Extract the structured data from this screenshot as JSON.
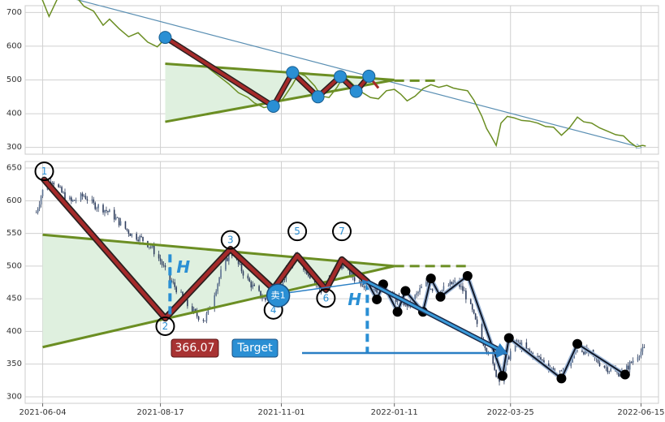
{
  "colors": {
    "price_line": "#6b8e23",
    "pattern_zigzag": "#a52a2a",
    "pattern_fill": "#dff0df",
    "trendline": "#6b8e23",
    "marker_blue": "#2a8fd4",
    "arrow_blue": "#2a7fc4",
    "candle": "#2f3e5e",
    "grid": "#d0d0d0",
    "price_badge_bg": "#a83232",
    "target_badge_bg": "#2a8fd4"
  },
  "chart_data": [
    {
      "type": "line",
      "panel": "overview",
      "ylim": [
        280,
        720
      ],
      "yticks": [
        "700",
        "600",
        "500",
        "400",
        "300"
      ],
      "x_start": "2021-06-01",
      "x_end": "2022-06-20",
      "series": [
        {
          "values": [
            [
              "2021-06-01",
              765
            ],
            [
              "2021-06-04",
              735
            ],
            [
              "2021-06-08",
              688
            ],
            [
              "2021-06-14",
              748
            ],
            [
              "2021-06-18",
              756
            ],
            [
              "2021-06-24",
              752
            ],
            [
              "2021-06-30",
              718
            ],
            [
              "2021-07-06",
              704
            ],
            [
              "2021-07-12",
              662
            ],
            [
              "2021-07-16",
              680
            ],
            [
              "2021-07-22",
              652
            ],
            [
              "2021-07-28",
              628
            ],
            [
              "2021-08-03",
              640
            ],
            [
              "2021-08-09",
              612
            ],
            [
              "2021-08-15",
              598
            ],
            [
              "2021-08-20",
              622
            ],
            [
              "2021-08-26",
              612
            ],
            [
              "2021-09-01",
              596
            ],
            [
              "2021-09-07",
              578
            ],
            [
              "2021-09-13",
              548
            ],
            [
              "2021-09-17",
              532
            ],
            [
              "2021-09-23",
              510
            ],
            [
              "2021-09-29",
              488
            ],
            [
              "2021-10-05",
              462
            ],
            [
              "2021-10-11",
              448
            ],
            [
              "2021-10-15",
              432
            ],
            [
              "2021-10-21",
              418
            ],
            [
              "2021-10-27",
              424
            ],
            [
              "2021-11-02",
              444
            ],
            [
              "2021-11-08",
              486
            ],
            [
              "2021-11-12",
              520
            ],
            [
              "2021-11-16",
              512
            ],
            [
              "2021-11-22",
              482
            ],
            [
              "2021-11-26",
              452
            ],
            [
              "2021-12-01",
              448
            ],
            [
              "2021-12-06",
              478
            ],
            [
              "2021-12-10",
              512
            ],
            [
              "2021-12-14",
              496
            ],
            [
              "2021-12-20",
              468
            ],
            [
              "2021-12-27",
              448
            ],
            [
              "2022-01-01",
              444
            ],
            [
              "2022-01-06",
              468
            ],
            [
              "2022-01-11",
              472
            ],
            [
              "2022-01-15",
              458
            ],
            [
              "2022-01-19",
              438
            ],
            [
              "2022-01-24",
              452
            ],
            [
              "2022-01-29",
              474
            ],
            [
              "2022-02-03",
              486
            ],
            [
              "2022-02-08",
              478
            ],
            [
              "2022-02-13",
              484
            ],
            [
              "2022-02-17",
              476
            ],
            [
              "2022-02-21",
              472
            ],
            [
              "2022-02-26",
              468
            ],
            [
              "2022-03-02",
              440
            ],
            [
              "2022-03-07",
              392
            ],
            [
              "2022-03-10",
              356
            ],
            [
              "2022-03-13",
              332
            ],
            [
              "2022-03-16",
              306
            ],
            [
              "2022-03-19",
              372
            ],
            [
              "2022-03-23",
              392
            ],
            [
              "2022-03-27",
              388
            ],
            [
              "2022-04-01",
              380
            ],
            [
              "2022-04-06",
              378
            ],
            [
              "2022-04-11",
              372
            ],
            [
              "2022-04-16",
              362
            ],
            [
              "2022-04-21",
              360
            ],
            [
              "2022-04-26",
              336
            ],
            [
              "2022-05-01",
              358
            ],
            [
              "2022-05-06",
              390
            ],
            [
              "2022-05-10",
              376
            ],
            [
              "2022-05-15",
              372
            ],
            [
              "2022-05-20",
              358
            ],
            [
              "2022-05-25",
              348
            ],
            [
              "2022-05-30",
              338
            ],
            [
              "2022-06-04",
              334
            ],
            [
              "2022-06-08",
              316
            ],
            [
              "2022-06-12",
              302
            ],
            [
              "2022-06-16",
              306
            ],
            [
              "2022-06-18",
              304
            ]
          ]
        }
      ],
      "zigzag": [
        [
          "2021-08-20",
          626
        ],
        [
          "2021-10-27",
          422
        ],
        [
          "2021-11-08",
          522
        ],
        [
          "2021-11-24",
          450
        ],
        [
          "2021-12-08",
          510
        ],
        [
          "2021-12-18",
          466
        ],
        [
          "2021-12-26",
          511
        ]
      ],
      "zigzag_tail": [
        [
          "2021-12-26",
          511
        ],
        [
          "2022-01-01",
          476
        ]
      ],
      "upper_line": [
        [
          "2021-08-20",
          548
        ],
        [
          "2022-01-11",
          500
        ]
      ],
      "lower_line": [
        [
          "2021-08-20",
          376
        ],
        [
          "2022-01-11",
          500
        ]
      ],
      "upper_line_extension": [
        [
          "2022-01-11",
          498
        ],
        [
          "2022-02-07",
          498
        ]
      ],
      "fill_polygon": [
        [
          "2021-08-20",
          548
        ],
        [
          "2022-01-11",
          500
        ],
        [
          "2021-08-20",
          376
        ]
      ],
      "arrow_outline": [
        [
          "2021-06-01",
          768
        ],
        [
          "2022-06-15",
          300
        ]
      ]
    },
    {
      "type": "candlestick",
      "panel": "detail",
      "ylim": [
        290,
        660
      ],
      "yticks": [
        "650",
        "600",
        "550",
        "500",
        "450",
        "400",
        "350",
        "300"
      ],
      "xticks": [
        {
          "label": "2021-06-04",
          "date": "2021-06-04"
        },
        {
          "label": "2021-08-17",
          "date": "2021-08-17"
        },
        {
          "label": "2021-11-01",
          "date": "2021-11-01"
        },
        {
          "label": "2022-01-11",
          "date": "2022-01-11"
        },
        {
          "label": "2022-03-25",
          "date": "2022-03-25"
        },
        {
          "label": "2022-06-15",
          "date": "2022-06-15"
        }
      ],
      "price_path": [
        [
          "2021-05-31",
          582
        ],
        [
          "2021-06-03",
          608
        ],
        [
          "2021-06-05",
          622
        ],
        [
          "2021-06-10",
          632
        ],
        [
          "2021-06-16",
          612
        ],
        [
          "2021-06-22",
          598
        ],
        [
          "2021-06-30",
          608
        ],
        [
          "2021-07-06",
          594
        ],
        [
          "2021-07-12",
          588
        ],
        [
          "2021-07-18",
          578
        ],
        [
          "2021-07-24",
          562
        ],
        [
          "2021-07-30",
          548
        ],
        [
          "2021-08-05",
          542
        ],
        [
          "2021-08-11",
          530
        ],
        [
          "2021-08-17",
          508
        ],
        [
          "2021-08-22",
          482
        ],
        [
          "2021-08-28",
          462
        ],
        [
          "2021-09-03",
          440
        ],
        [
          "2021-09-09",
          424
        ],
        [
          "2021-09-14",
          418
        ],
        [
          "2021-09-19",
          452
        ],
        [
          "2021-09-24",
          490
        ],
        [
          "2021-09-30",
          524
        ],
        [
          "2021-10-05",
          502
        ],
        [
          "2021-10-11",
          478
        ],
        [
          "2021-10-16",
          462
        ],
        [
          "2021-10-22",
          448
        ],
        [
          "2021-10-27",
          452
        ],
        [
          "2021-11-02",
          478
        ],
        [
          "2021-11-07",
          508
        ],
        [
          "2021-11-11",
          514
        ],
        [
          "2021-11-17",
          492
        ],
        [
          "2021-11-22",
          476
        ],
        [
          "2021-11-26",
          462
        ],
        [
          "2021-12-02",
          482
        ],
        [
          "2021-12-07",
          506
        ],
        [
          "2021-12-12",
          496
        ],
        [
          "2021-12-18",
          478
        ],
        [
          "2021-12-24",
          472
        ],
        [
          "2021-12-30",
          464
        ],
        [
          "2022-01-04",
          470
        ],
        [
          "2022-01-09",
          452
        ],
        [
          "2022-01-14",
          448
        ],
        [
          "2022-01-20",
          440
        ],
        [
          "2022-01-25",
          456
        ],
        [
          "2022-01-30",
          474
        ],
        [
          "2022-02-04",
          466
        ],
        [
          "2022-02-09",
          462
        ],
        [
          "2022-02-14",
          470
        ],
        [
          "2022-02-19",
          476
        ],
        [
          "2022-02-24",
          460
        ],
        [
          "2022-03-01",
          430
        ],
        [
          "2022-03-06",
          392
        ],
        [
          "2022-03-11",
          370
        ],
        [
          "2022-03-15",
          338
        ],
        [
          "2022-03-19",
          326
        ],
        [
          "2022-03-23",
          356
        ],
        [
          "2022-03-27",
          382
        ],
        [
          "2022-04-01",
          378
        ],
        [
          "2022-04-06",
          368
        ],
        [
          "2022-04-11",
          360
        ],
        [
          "2022-04-16",
          352
        ],
        [
          "2022-04-21",
          340
        ],
        [
          "2022-04-26",
          334
        ],
        [
          "2022-05-01",
          350
        ],
        [
          "2022-05-06",
          374
        ],
        [
          "2022-05-11",
          370
        ],
        [
          "2022-05-16",
          360
        ],
        [
          "2022-05-21",
          350
        ],
        [
          "2022-05-26",
          342
        ],
        [
          "2022-05-31",
          336
        ],
        [
          "2022-06-05",
          340
        ],
        [
          "2022-06-10",
          356
        ],
        [
          "2022-06-14",
          368
        ],
        [
          "2022-06-17",
          372
        ]
      ],
      "zigzag": [
        [
          "2021-06-05",
          632
        ],
        [
          "2021-08-20",
          420
        ],
        [
          "2021-09-30",
          526
        ],
        [
          "2021-10-27",
          465
        ],
        [
          "2021-11-11",
          516
        ],
        [
          "2021-11-29",
          464
        ],
        [
          "2021-12-09",
          510
        ],
        [
          "2021-12-25",
          476
        ]
      ],
      "pivot_labels": [
        "1",
        "2",
        "3",
        "4",
        "5",
        "6",
        "7"
      ],
      "pivot_label_positions": [
        [
          "2021-06-05",
          645
        ],
        [
          "2021-08-20",
          408
        ],
        [
          "2021-09-30",
          540
        ],
        [
          "2021-10-27",
          433
        ],
        [
          "2021-11-11",
          553
        ],
        [
          "2021-11-29",
          451
        ],
        [
          "2021-12-09",
          553
        ]
      ],
      "upper_line": [
        [
          "2021-06-04",
          548
        ],
        [
          "2022-01-11",
          500
        ]
      ],
      "lower_line": [
        [
          "2021-06-04",
          376
        ],
        [
          "2022-01-11",
          500
        ]
      ],
      "upper_line_extension": [
        [
          "2022-01-11",
          500
        ],
        [
          "2022-02-26",
          500
        ]
      ],
      "fill_polygon": [
        [
          "2021-06-04",
          548
        ],
        [
          "2022-01-11",
          500
        ],
        [
          "2021-06-04",
          376
        ]
      ],
      "height_marker_h": "H",
      "height_bar_1": [
        [
          "2021-08-23",
          518
        ],
        [
          "2021-08-23",
          420
        ]
      ],
      "height_bar_2": [
        [
          "2021-12-25",
          476
        ],
        [
          "2021-12-25",
          368
        ]
      ],
      "sell_marker": {
        "label": "卖1",
        "date": "2021-10-30",
        "value": 455
      },
      "sell_arrow": [
        [
          "2021-10-30",
          457
        ],
        [
          "2021-12-25",
          476
        ]
      ],
      "black_path": [
        [
          "2021-12-25",
          476
        ],
        [
          "2021-12-31",
          449
        ],
        [
          "2022-01-04",
          472
        ],
        [
          "2022-01-13",
          430
        ],
        [
          "2022-01-18",
          462
        ],
        [
          "2022-01-29",
          430
        ],
        [
          "2022-02-03",
          481
        ],
        [
          "2022-02-09",
          453
        ],
        [
          "2022-02-26",
          485
        ],
        [
          "2022-03-20",
          332
        ],
        [
          "2022-03-24",
          390
        ],
        [
          "2022-04-26",
          328
        ],
        [
          "2022-05-06",
          381
        ],
        [
          "2022-06-05",
          334
        ]
      ],
      "target_arrow": [
        [
          "2021-12-25",
          476
        ],
        [
          "2022-03-22",
          367
        ]
      ],
      "target_line": [
        [
          "2021-11-14",
          367
        ],
        [
          "2022-03-21",
          367
        ]
      ],
      "price_badge": "366.07",
      "target_badge": "Target"
    }
  ]
}
